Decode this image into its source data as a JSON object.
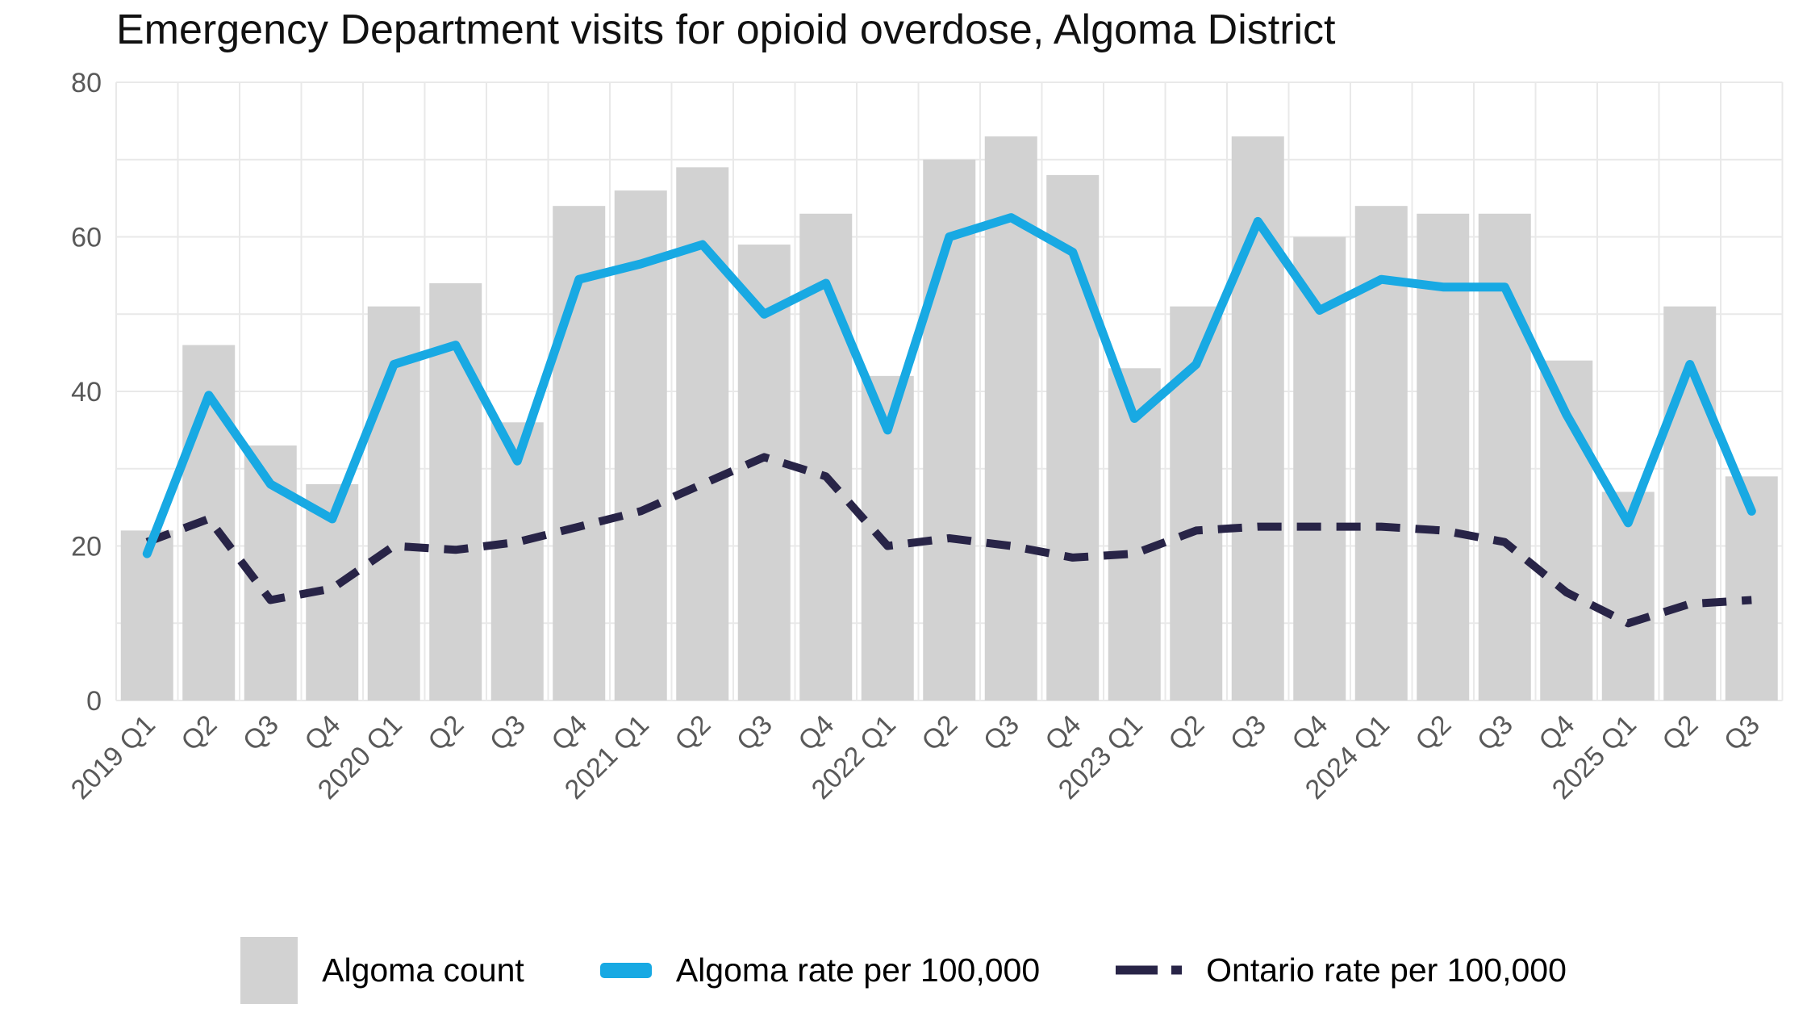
{
  "title": "Emergency Department visits for opioid overdose, Algoma District",
  "colors": {
    "bar": "#d2d2d2",
    "algoma_line": "#18a9e3",
    "ontario_line": "#282447",
    "grid": "#e9e9e9",
    "axis_text": "#595959",
    "title_text": "#111111",
    "background": "#ffffff"
  },
  "legend": {
    "items": [
      {
        "swatch": "bar",
        "label": "Algoma count"
      },
      {
        "swatch": "line",
        "label": "Algoma rate per 100,000"
      },
      {
        "swatch": "dashed",
        "label": "Ontario rate per 100,000"
      }
    ]
  },
  "chart_data": {
    "type": "bar",
    "subtype": "bar-with-lines",
    "title": "Emergency Department visits for opioid overdose, Algoma District",
    "xlabel": "",
    "ylabel": "",
    "ylim": [
      0,
      80
    ],
    "yticks": [
      0,
      20,
      40,
      60,
      80
    ],
    "grid_step": 10,
    "grid": true,
    "legend_position": "bottom",
    "categories": [
      "2019 Q1",
      "Q2",
      "Q3",
      "Q4",
      "2020 Q1",
      "Q2",
      "Q3",
      "Q4",
      "2021 Q1",
      "Q2",
      "Q3",
      "Q4",
      "2022 Q1",
      "Q2",
      "Q3",
      "Q4",
      "2023 Q1",
      "Q2",
      "Q3",
      "Q4",
      "2024 Q1",
      "Q2",
      "Q3",
      "Q4",
      "2025 Q1",
      "Q2",
      "Q3"
    ],
    "series": [
      {
        "name": "Algoma count",
        "type": "bar",
        "values": [
          22,
          46,
          33,
          28,
          51,
          54,
          36,
          64,
          66,
          69,
          59,
          63,
          42,
          70,
          73,
          68,
          43,
          51,
          73,
          60,
          64,
          63,
          63,
          44,
          27,
          51,
          29
        ]
      },
      {
        "name": "Algoma rate per 100,000",
        "type": "line",
        "values": [
          19,
          39.5,
          28,
          23.5,
          43.5,
          46,
          31,
          54.5,
          56.5,
          59,
          50,
          54,
          35,
          60,
          62.5,
          58,
          36.5,
          43.5,
          62,
          50.5,
          54.5,
          53.5,
          53.5,
          37,
          23,
          43.5,
          24.5
        ]
      },
      {
        "name": "Ontario rate per 100,000",
        "type": "line-dashed",
        "values": [
          20.5,
          23.5,
          13,
          14.5,
          20,
          19.5,
          20.5,
          22.5,
          24.5,
          28,
          31.5,
          29,
          20,
          21,
          20,
          18.5,
          19,
          22,
          22.5,
          22.5,
          22.5,
          22,
          20.5,
          14,
          10,
          12.5,
          13
        ]
      }
    ]
  }
}
